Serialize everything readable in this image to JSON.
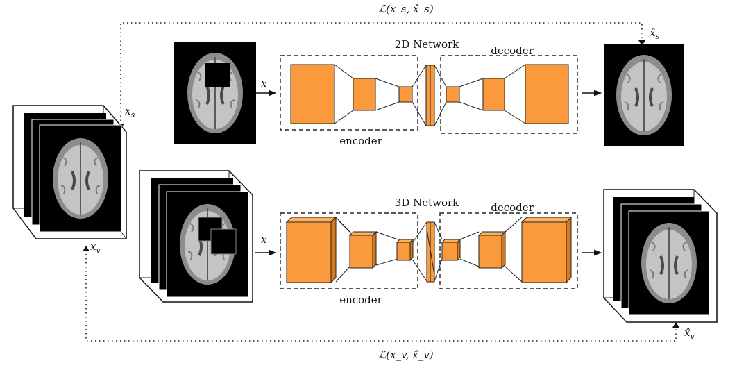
{
  "colors": {
    "block_front": "#fb9a3c",
    "block_side": "#d8791c",
    "block_top": "#fcb160",
    "mri_bg": "#000000",
    "brain_outer": "#8c8c8c",
    "brain_inner": "#c4c4c4"
  },
  "network_2d": {
    "title": "2D Network",
    "encoder_label": "encoder",
    "decoder_label": "decoder"
  },
  "network_3d": {
    "title": "3D Network",
    "encoder_label": "encoder",
    "decoder_label": "decoder"
  },
  "labels": {
    "x_in_2d": "x",
    "x_in_3d": "x",
    "x_s": "x",
    "x_s_sub": "s",
    "x_v": "x",
    "x_v_sub": "v",
    "x_hat_s": "x̂",
    "x_hat_s_sub": "s",
    "x_hat_v": "x̂",
    "x_hat_v_sub": "v",
    "loss_s": "ℒ(x_s, x̂_s)",
    "loss_v": "ℒ(x_v, x̂_v)"
  },
  "images": {
    "input_volume": "brain-mri-volume",
    "masked_slice_2d": "masked-brain-slice",
    "masked_volume_3d": "masked-brain-volume",
    "output_slice_2d": "reconstructed-brain-slice",
    "output_volume_3d": "reconstructed-brain-volume"
  }
}
